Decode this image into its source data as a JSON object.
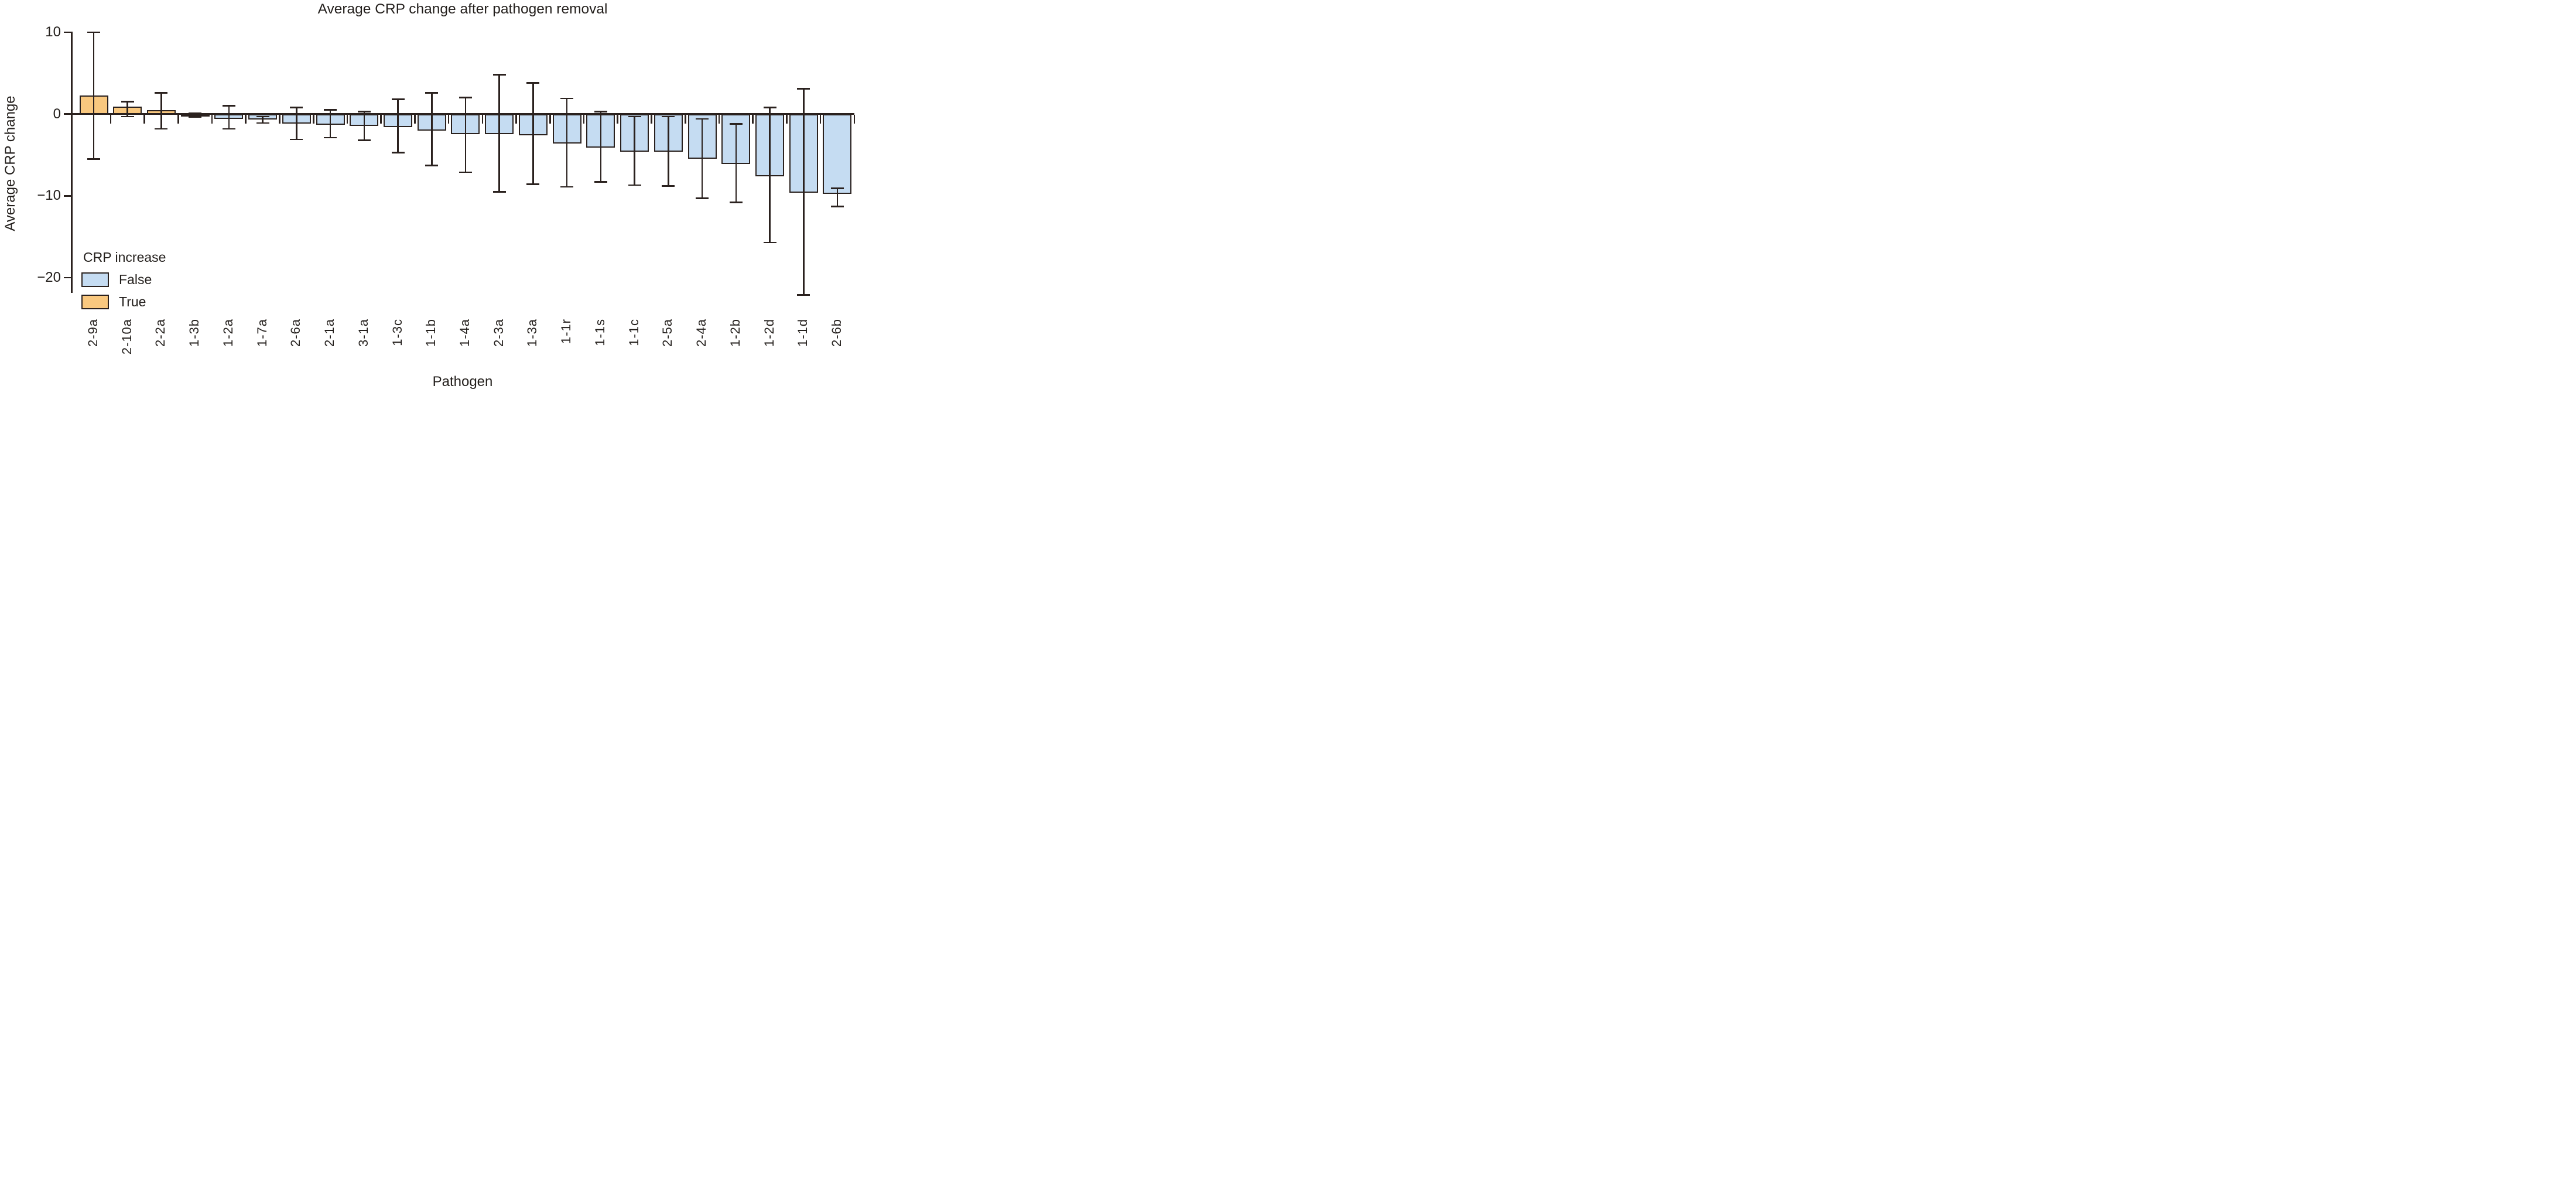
{
  "figure": {
    "title": "Average CRP change after pathogen removal",
    "x_axis_label": "Pathogen",
    "y_axis_label": "Average CRP change"
  },
  "legend": {
    "title": "CRP increase",
    "items": [
      {
        "label": "False",
        "color": "#c5dcf2"
      },
      {
        "label": "True",
        "color": "#f9c87f"
      }
    ]
  },
  "colors": {
    "false_fill": "#c5dcf2",
    "true_fill": "#f9c87f",
    "stroke": "#2a211e",
    "text": "#231f1c",
    "background": "#ffffff"
  },
  "chart_data": {
    "type": "bar",
    "title": "Average CRP change after pathogen removal",
    "xlabel": "Pathogen",
    "ylabel": "Average CRP change",
    "series_label": "CRP increase",
    "ylim": [
      -22.5,
      10.6
    ],
    "y_tick_values": [
      10,
      0,
      -10,
      -20
    ],
    "grid": false,
    "legend_position": "lower-left",
    "error_bars": true,
    "bars": [
      {
        "label": "2-9a",
        "crp_increase": true,
        "value": 2.3,
        "err_low": -5.5,
        "err_high": 10.0
      },
      {
        "label": "2-10a",
        "crp_increase": true,
        "value": 0.9,
        "err_low": -0.3,
        "err_high": 1.5
      },
      {
        "label": "2-2a",
        "crp_increase": true,
        "value": 0.5,
        "err_low": -1.8,
        "err_high": 2.6
      },
      {
        "label": "1-3b",
        "crp_increase": false,
        "value": -0.1,
        "err_low": -0.35,
        "err_high": 0.1
      },
      {
        "label": "1-2a",
        "crp_increase": false,
        "value": -0.5,
        "err_low": -1.8,
        "err_high": 1.0
      },
      {
        "label": "1-7a",
        "crp_increase": false,
        "value": -0.6,
        "err_low": -1.1,
        "err_high": -0.3
      },
      {
        "label": "2-6a",
        "crp_increase": false,
        "value": -1.1,
        "err_low": -3.1,
        "err_high": 0.8
      },
      {
        "label": "2-1a",
        "crp_increase": false,
        "value": -1.2,
        "err_low": -2.9,
        "err_high": 0.5
      },
      {
        "label": "3-1a",
        "crp_increase": false,
        "value": -1.35,
        "err_low": -3.2,
        "err_high": 0.3
      },
      {
        "label": "1-3c",
        "crp_increase": false,
        "value": -1.5,
        "err_low": -4.7,
        "err_high": 1.8
      },
      {
        "label": "1-1b",
        "crp_increase": false,
        "value": -1.9,
        "err_low": -6.3,
        "err_high": 2.6
      },
      {
        "label": "1-4a",
        "crp_increase": false,
        "value": -2.4,
        "err_low": -7.1,
        "err_high": 2.0
      },
      {
        "label": "2-3a",
        "crp_increase": false,
        "value": -2.4,
        "err_low": -9.5,
        "err_high": 4.8
      },
      {
        "label": "1-3a",
        "crp_increase": false,
        "value": -2.5,
        "err_low": -8.6,
        "err_high": 3.8
      },
      {
        "label": "1-1r",
        "crp_increase": false,
        "value": -3.5,
        "err_low": -8.9,
        "err_high": 1.9
      },
      {
        "label": "1-1s",
        "crp_increase": false,
        "value": -4.0,
        "err_low": -8.3,
        "err_high": 0.3
      },
      {
        "label": "1-1c",
        "crp_increase": false,
        "value": -4.5,
        "err_low": -8.7,
        "err_high": -0.3
      },
      {
        "label": "2-5a",
        "crp_increase": false,
        "value": -4.5,
        "err_low": -8.8,
        "err_high": -0.3
      },
      {
        "label": "2-4a",
        "crp_increase": false,
        "value": -5.4,
        "err_low": -10.3,
        "err_high": -0.6
      },
      {
        "label": "1-2b",
        "crp_increase": false,
        "value": -6.0,
        "err_low": -10.8,
        "err_high": -1.2
      },
      {
        "label": "1-2d",
        "crp_increase": false,
        "value": -7.5,
        "err_low": -15.7,
        "err_high": 0.8
      },
      {
        "label": "1-1d",
        "crp_increase": false,
        "value": -9.5,
        "err_low": -22.1,
        "err_high": 3.1
      },
      {
        "label": "2-6b",
        "crp_increase": false,
        "value": -9.7,
        "err_low": -11.3,
        "err_high": -9.1
      }
    ]
  }
}
